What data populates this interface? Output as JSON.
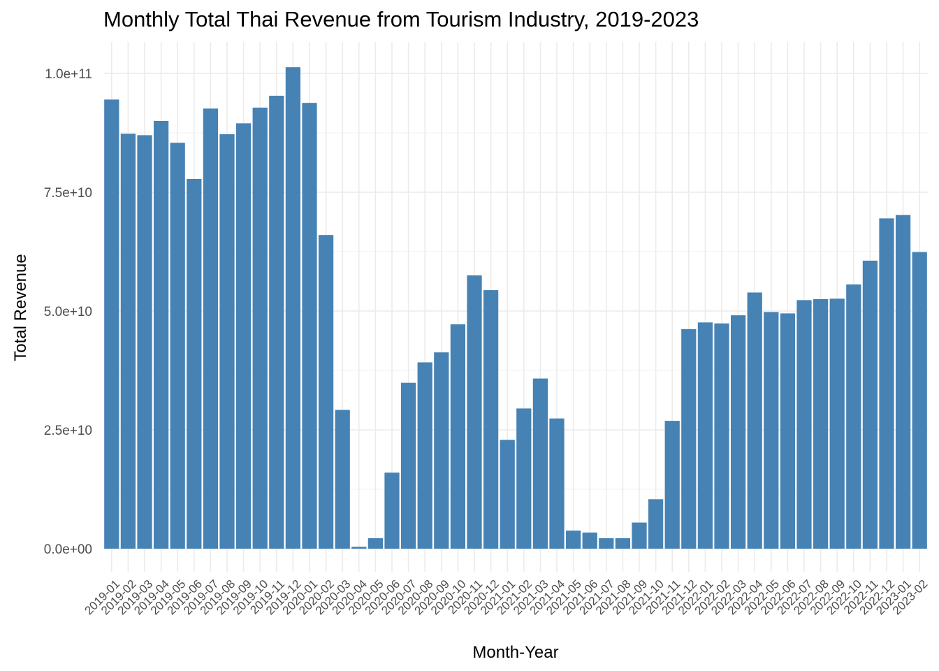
{
  "chart_data": {
    "type": "bar",
    "title": "Monthly Total Thai Revenue from Tourism Industry, 2019-2023",
    "xlabel": "Month-Year",
    "ylabel": "Total Revenue",
    "ylim": [
      -2000000000,
      106000000000
    ],
    "yticks": [
      0,
      25000000000,
      50000000000,
      75000000000,
      100000000000
    ],
    "ytick_labels": [
      "0.0e+00",
      "2.5e+10",
      "5.0e+10",
      "7.5e+10",
      "1.0e+11"
    ],
    "grid": true,
    "legend": "none",
    "bar_color": "#4682B4",
    "categories": [
      "2019-01",
      "2019-02",
      "2019-03",
      "2019-04",
      "2019-05",
      "2019-06",
      "2019-07",
      "2019-08",
      "2019-09",
      "2019-10",
      "2019-11",
      "2019-12",
      "2020-01",
      "2020-02",
      "2020-03",
      "2020-04",
      "2020-05",
      "2020-06",
      "2020-07",
      "2020-08",
      "2020-09",
      "2020-10",
      "2020-11",
      "2020-12",
      "2021-01",
      "2021-02",
      "2021-03",
      "2021-04",
      "2021-05",
      "2021-06",
      "2021-07",
      "2021-08",
      "2021-09",
      "2021-10",
      "2021-11",
      "2021-12",
      "2022-01",
      "2022-02",
      "2022-03",
      "2022-04",
      "2022-05",
      "2022-06",
      "2022-07",
      "2022-08",
      "2022-09",
      "2022-10",
      "2022-11",
      "2022-12",
      "2023-01",
      "2023-02"
    ],
    "values": [
      94500000000,
      87300000000,
      87000000000,
      90000000000,
      85400000000,
      77800000000,
      92600000000,
      87200000000,
      89500000000,
      92800000000,
      95300000000,
      101300000000,
      93800000000,
      66000000000,
      29200000000,
      400000000,
      2200000000,
      16000000000,
      34900000000,
      39200000000,
      41300000000,
      47200000000,
      57500000000,
      54400000000,
      22900000000,
      29500000000,
      35800000000,
      27400000000,
      3800000000,
      3400000000,
      2200000000,
      2200000000,
      5500000000,
      10400000000,
      26900000000,
      46200000000,
      47600000000,
      47400000000,
      49100000000,
      53900000000,
      49800000000,
      49500000000,
      52300000000,
      52500000000,
      52600000000,
      55600000000,
      60600000000,
      69500000000,
      70200000000,
      62400000000
    ]
  }
}
